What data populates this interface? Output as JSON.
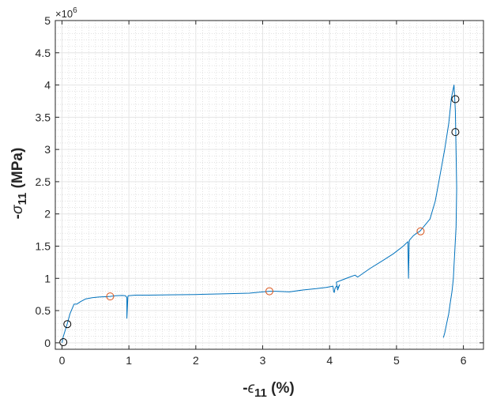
{
  "chart_data": {
    "type": "line",
    "xlabel": {
      "prefix": "-",
      "symbol": "ϵ",
      "subscript": "11",
      "suffix": " (%)"
    },
    "ylabel": {
      "prefix": "-",
      "symbol": "σ",
      "subscript": "11",
      "suffix": " (MPa)"
    },
    "y_multiplier": {
      "base": "×10",
      "exponent": "6"
    },
    "xlim": [
      -0.1,
      6.3
    ],
    "ylim": [
      -0.1,
      5
    ],
    "x_ticks": [
      0,
      1,
      2,
      3,
      4,
      5,
      6
    ],
    "x_tick_labels": [
      "0",
      "1",
      "2",
      "3",
      "4",
      "5",
      "6"
    ],
    "y_ticks": [
      0,
      0.5,
      1,
      1.5,
      2,
      2.5,
      3,
      3.5,
      4,
      4.5,
      5
    ],
    "y_tick_labels": [
      "0",
      "0.5",
      "1",
      "1.5",
      "2",
      "2.5",
      "3",
      "3.5",
      "4",
      "4.5",
      "5"
    ],
    "grid": true,
    "minor_grid": true,
    "colors": {
      "line": "#0072bd",
      "marker_black": "#000000",
      "marker_orange": "#d95319",
      "axis": "#262626",
      "grid_major": "#e6e6e6",
      "grid_minor": "#d0d0d0"
    },
    "series": [
      {
        "x": [
          0,
          0.02,
          0.05,
          0.08,
          0.12,
          0.18,
          0.22,
          0.28,
          0.35,
          0.45,
          0.55,
          0.65,
          0.72,
          0.8,
          0.9,
          0.95,
          0.97,
          0.97,
          0.985,
          0.99,
          1.1,
          1.3,
          1.6,
          2.0,
          2.4,
          2.8,
          3.0,
          3.1,
          3.2,
          3.4,
          3.6,
          3.8,
          3.95,
          4.05,
          4.06,
          4.07,
          4.08,
          4.1,
          4.13,
          4.15,
          4.12,
          4.1,
          4.2,
          4.3,
          4.38,
          4.42,
          4.6,
          4.8,
          4.95,
          5.1,
          5.17,
          5.18,
          5.19,
          5.2,
          5.25,
          5.3,
          5.35,
          5.42,
          5.5,
          5.58,
          5.65,
          5.72,
          5.78,
          5.82,
          5.86,
          5.88,
          5.9,
          5.89,
          5.87,
          5.86,
          5.85,
          5.83,
          5.8,
          5.78,
          5.75,
          5.72,
          5.7
        ],
        "y": [
          0,
          0.1,
          0.2,
          0.3,
          0.45,
          0.6,
          0.6,
          0.64,
          0.68,
          0.7,
          0.71,
          0.715,
          0.72,
          0.73,
          0.735,
          0.73,
          0.7,
          0.38,
          0.72,
          0.73,
          0.74,
          0.74,
          0.745,
          0.75,
          0.76,
          0.77,
          0.79,
          0.8,
          0.8,
          0.79,
          0.82,
          0.84,
          0.86,
          0.88,
          0.8,
          0.78,
          0.84,
          0.88,
          0.86,
          0.9,
          0.82,
          0.94,
          0.98,
          1.02,
          1.05,
          1.02,
          1.15,
          1.28,
          1.38,
          1.5,
          1.57,
          1.0,
          1.58,
          1.6,
          1.66,
          1.7,
          1.73,
          1.82,
          1.92,
          2.2,
          2.6,
          3.0,
          3.4,
          3.8,
          4.0,
          3.6,
          2.4,
          1.8,
          1.4,
          1.2,
          1.0,
          0.8,
          0.6,
          0.45,
          0.3,
          0.15,
          0.08
        ]
      }
    ],
    "markers": [
      {
        "x": 0.02,
        "y": 0.01,
        "color": "black"
      },
      {
        "x": 0.08,
        "y": 0.29,
        "color": "black"
      },
      {
        "x": 0.72,
        "y": 0.72,
        "color": "orange"
      },
      {
        "x": 3.1,
        "y": 0.8,
        "color": "orange"
      },
      {
        "x": 5.36,
        "y": 1.73,
        "color": "orange"
      },
      {
        "x": 5.88,
        "y": 3.78,
        "color": "black"
      },
      {
        "x": 5.88,
        "y": 3.27,
        "color": "black"
      }
    ]
  }
}
